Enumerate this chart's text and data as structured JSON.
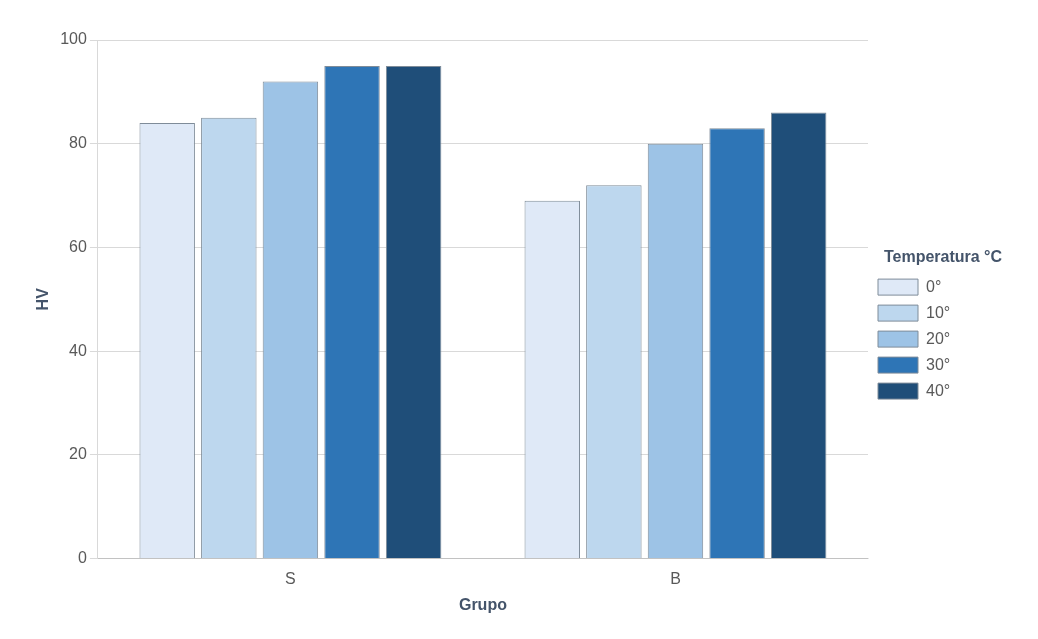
{
  "chart_data": {
    "type": "bar",
    "xlabel": "Grupo",
    "ylabel": "HV",
    "legend_title": "Temperatura °C",
    "categories": [
      "S",
      "B"
    ],
    "series": [
      {
        "name": "0°",
        "color": "#dfe9f7",
        "values": [
          84,
          69
        ]
      },
      {
        "name": "10°",
        "color": "#bdd7ee",
        "values": [
          85,
          72
        ]
      },
      {
        "name": "20°",
        "color": "#9dc3e6",
        "values": [
          92,
          80
        ]
      },
      {
        "name": "30°",
        "color": "#2e75b6",
        "values": [
          95,
          83
        ]
      },
      {
        "name": "40°",
        "color": "#1f4e79",
        "values": [
          95,
          86
        ]
      }
    ],
    "ylim": [
      0,
      100
    ],
    "yticks": [
      0,
      20,
      40,
      60,
      80,
      100
    ],
    "grid": "y",
    "legend": "right"
  }
}
